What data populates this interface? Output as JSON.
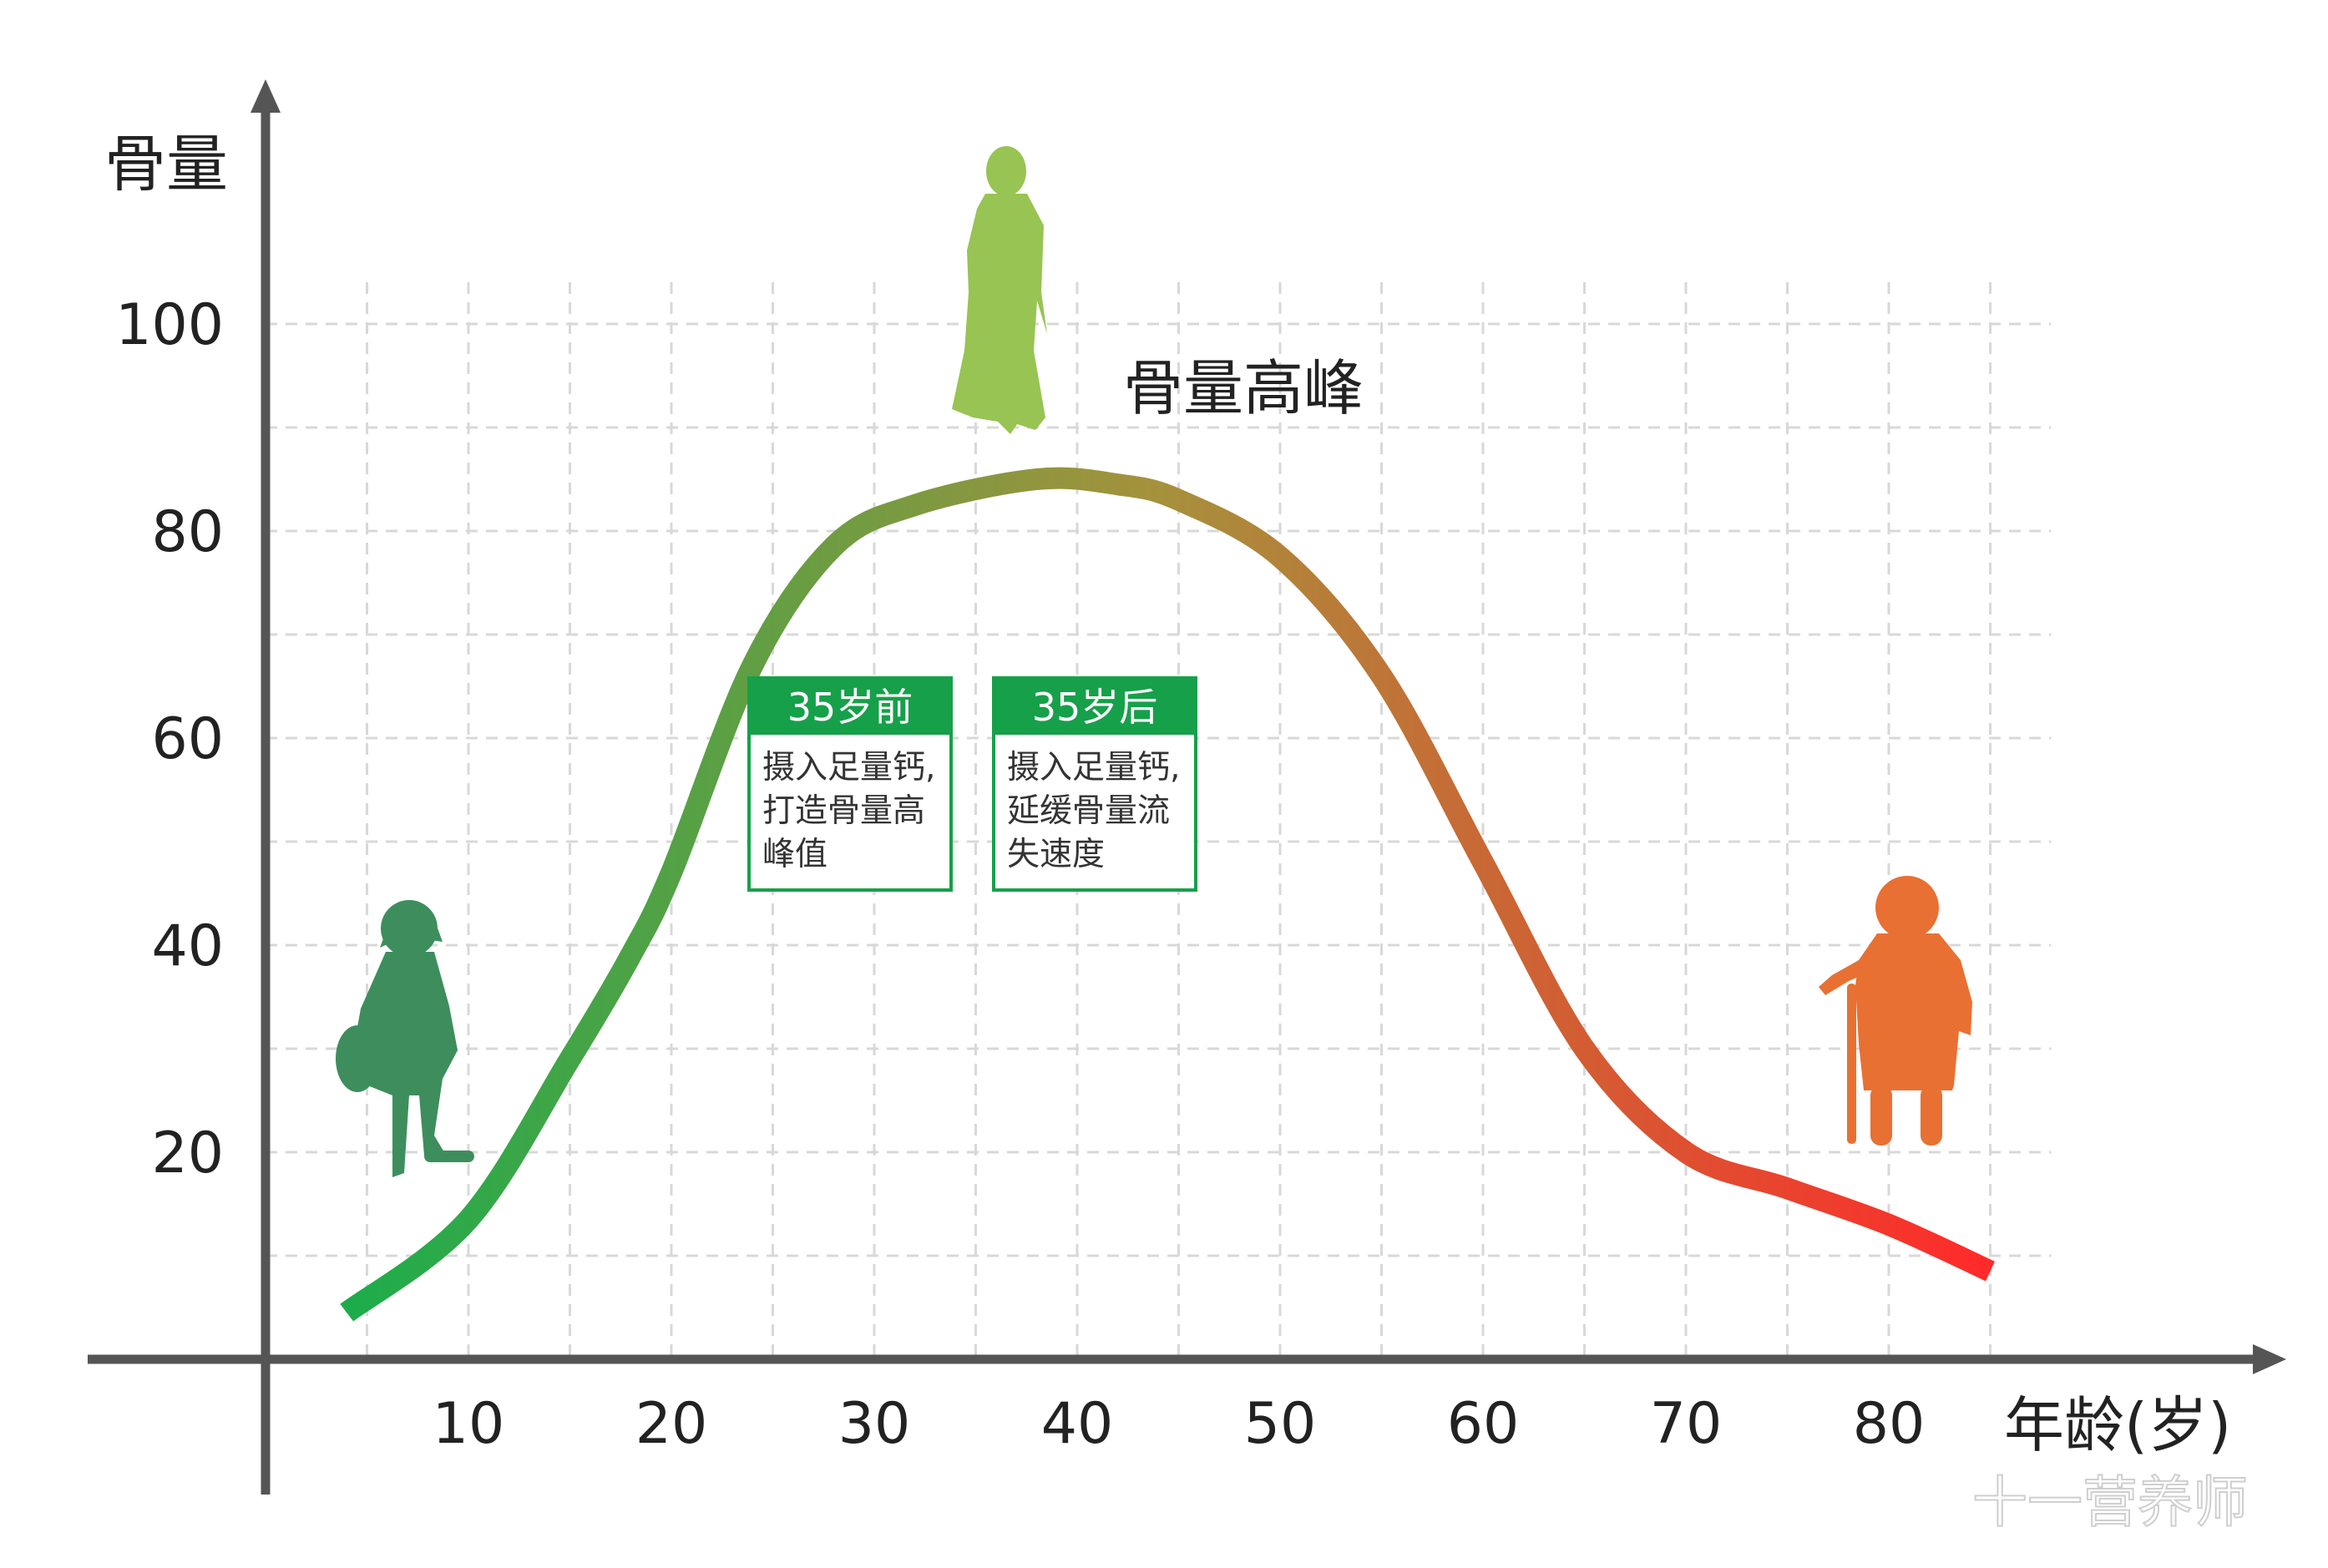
{
  "chart_data": {
    "type": "line",
    "ylabel": "骨量",
    "xlabel": "年龄(岁)",
    "x_ticks": [
      10,
      20,
      30,
      40,
      50,
      60,
      70,
      80
    ],
    "y_ticks": [
      20,
      40,
      60,
      80,
      100
    ],
    "xlim": [
      0,
      90
    ],
    "ylim": [
      0,
      100
    ],
    "grid": true,
    "series": [
      {
        "x": [
          4,
          10,
          15,
          18,
          20,
          24,
          28,
          32,
          38,
          42,
          45,
          50,
          55,
          60,
          65,
          70,
          75,
          80,
          85
        ],
        "y": [
          4.5,
          13.5,
          29,
          39,
          47,
          67,
          78.5,
          82.5,
          85,
          84.5,
          83,
          77.5,
          66,
          48,
          30,
          20,
          16.5,
          13,
          8.5
        ],
        "color_start": "#1aad4b",
        "color_mid": "#a6913c",
        "color_end": "#ff2a2a"
      }
    ],
    "annotations": {
      "peak_label": "骨量高峰",
      "before": {
        "title": "35岁前",
        "text": "摄入足量钙,\n打造骨量高\n峰值"
      },
      "after": {
        "title": "35岁后",
        "text": "摄入足量钙,\n延缓骨量流\n失速度"
      }
    }
  },
  "figures": {
    "child_color": "#3d8e5c",
    "woman_color": "#97c452",
    "elder_color": "#e87033"
  },
  "watermark": "十一营养师"
}
